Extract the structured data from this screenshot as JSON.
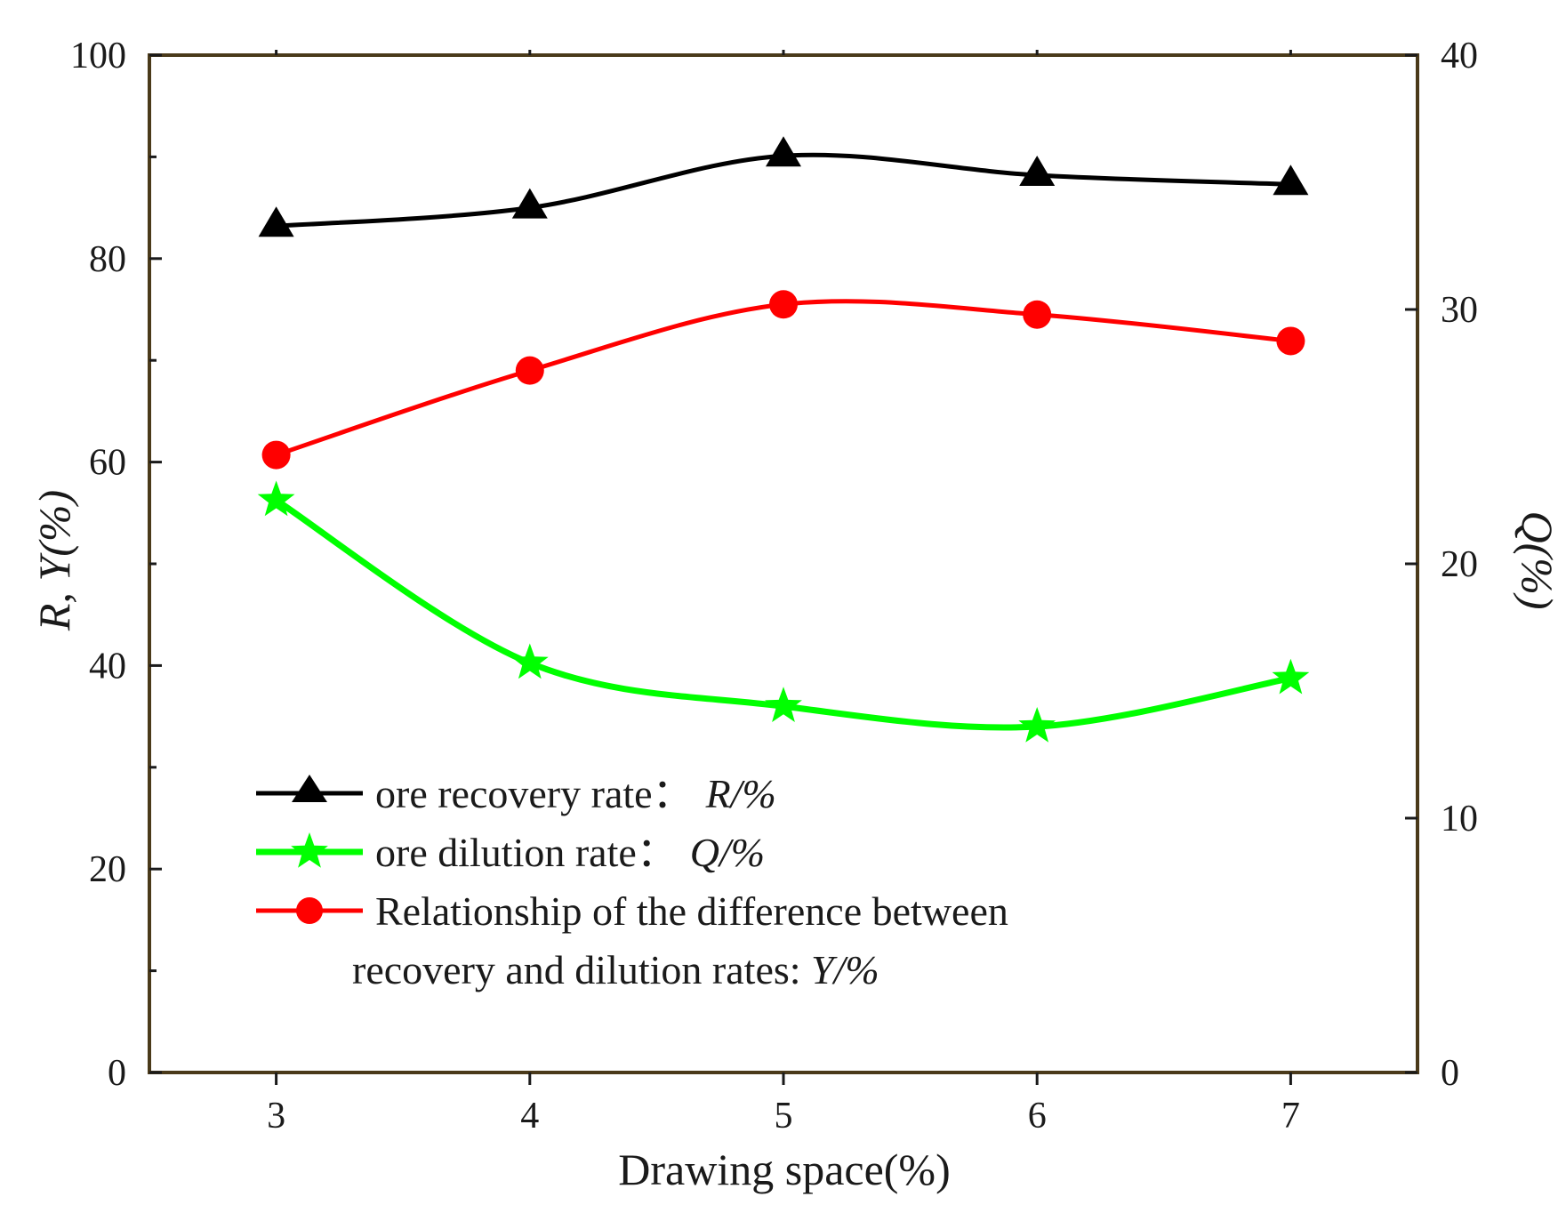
{
  "chart_data": {
    "type": "line",
    "x": [
      3,
      4,
      5,
      6,
      7
    ],
    "xlim": [
      2.5,
      7.5
    ],
    "xticks": [
      3,
      4,
      5,
      6,
      7
    ],
    "xlabel": "Drawing space(%)",
    "ylabel_left": "R, Y(%)",
    "ylim_left": [
      0,
      100
    ],
    "yticks_left": [
      0,
      20,
      40,
      60,
      80,
      100
    ],
    "ylabel_right": "Q(%)",
    "ylim_right": [
      0,
      40
    ],
    "yticks_right": [
      0,
      10,
      20,
      30,
      40
    ],
    "series": [
      {
        "name": "ore recovery rate： R/%",
        "legend_text": "ore recovery rate：",
        "legend_var": "R/%",
        "axis": "left",
        "color": "#000000",
        "marker": "triangle",
        "values": [
          83.2,
          85.0,
          90.1,
          88.2,
          87.3
        ]
      },
      {
        "name": "ore dilution rate： Q/%",
        "legend_text": "ore dilution rate：",
        "legend_var": "Q/%",
        "axis": "right",
        "color": "#00ff00",
        "marker": "star",
        "values": [
          22.5,
          16.1,
          14.4,
          13.6,
          15.5
        ]
      },
      {
        "name": "Relationship of the difference between recovery and dilution rates: Y/%",
        "legend_text_line1": "Relationship of the difference between",
        "legend_text_line2": "recovery and dilution rates: ",
        "legend_var": "Y/%",
        "axis": "left",
        "color": "#ff0000",
        "marker": "circle",
        "values": [
          60.7,
          69.0,
          75.5,
          74.5,
          71.9
        ]
      }
    ],
    "legend_position": "lower-left",
    "grid": false
  }
}
